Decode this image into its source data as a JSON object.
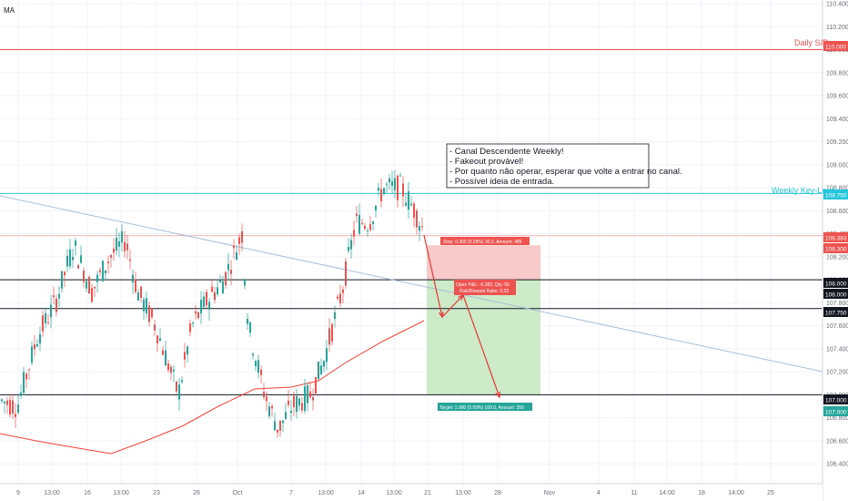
{
  "indicator_label": "MA",
  "annotation_lines": [
    "- Canal Descendente Weekly!",
    "- Fakeout provável!",
    "- Por quanto não operar, esperar que volte a entrar no canal.",
    "- Possível ideia de entrada."
  ],
  "levels": {
    "daily_sr": {
      "label": "Daily S/R",
      "value": "110.000",
      "color": "#ef5350"
    },
    "weekly_key": {
      "label": "Weekly Key-Level",
      "value": "108.750",
      "color": "#26c6da"
    },
    "black_level_1": {
      "value": "108.000"
    },
    "black_level_2": {
      "value": "107.750"
    },
    "black_level_3": {
      "value": "107.000"
    }
  },
  "position": {
    "stop_label": "Stop: 0.300 (0.28%) 30.0, Amount: 485",
    "stop_price": "108.383",
    "stop_price2": "108.300",
    "entry_label_1": "Open P&L: -0.383, Qty: 50",
    "entry_label_2": "Risk/Reward Ratio: 3.33",
    "entry_price": "108.000",
    "target_label": "Target: 1.000 (0.93%) 100.0, Amount: 350",
    "target_price": "107.000"
  },
  "colors": {
    "up": "#26a69a",
    "down": "#ef5350",
    "ma": "#f44336",
    "trendline": "#a6bfd9",
    "risk_zone": "#f8c9c9",
    "reward_zone": "#cdebc9",
    "arrow": "#e53935"
  },
  "chart_data": {
    "type": "candlestick",
    "y_axis": {
      "ticks": [
        "110.400",
        "110.200",
        "110.000",
        "109.800",
        "109.600",
        "109.400",
        "109.200",
        "109.000",
        "108.800",
        "108.600",
        "108.400",
        "108.200",
        "108.000",
        "107.800",
        "107.600",
        "107.400",
        "107.200",
        "107.000",
        "106.800",
        "106.600",
        "106.400"
      ]
    },
    "x_axis": {
      "ticks": [
        "9",
        "13:00",
        "16",
        "13:00",
        "23",
        "26",
        "Oct",
        "7",
        "13:00",
        "14",
        "13:00",
        "21",
        "13:00",
        "28",
        "Nov",
        "4",
        "11",
        "14:00",
        "18",
        "14:00",
        "25"
      ]
    },
    "candles_summary": [
      {
        "x": "9",
        "o": 106.95,
        "h": 107.05,
        "l": 106.85,
        "c": 107.0
      },
      {
        "x": "13:00",
        "o": 107.3,
        "h": 107.8,
        "l": 107.2,
        "c": 107.7
      },
      {
        "x": "16",
        "o": 107.9,
        "h": 108.3,
        "l": 107.7,
        "c": 108.2
      },
      {
        "x": "13:00",
        "o": 108.2,
        "h": 108.4,
        "l": 108.0,
        "c": 108.1
      },
      {
        "x": "23",
        "o": 107.8,
        "h": 107.9,
        "l": 107.0,
        "c": 107.2
      },
      {
        "x": "26",
        "o": 107.6,
        "h": 108.0,
        "l": 107.4,
        "c": 107.9
      },
      {
        "x": "Oct",
        "o": 108.3,
        "h": 108.4,
        "l": 107.5,
        "c": 107.8
      },
      {
        "x": "7",
        "o": 107.1,
        "h": 107.2,
        "l": 106.5,
        "c": 106.8
      },
      {
        "x": "13:00",
        "o": 107.4,
        "h": 107.8,
        "l": 107.2,
        "c": 107.7
      },
      {
        "x": "14",
        "o": 108.4,
        "h": 108.85,
        "l": 108.2,
        "c": 108.7
      },
      {
        "x": "13:00",
        "o": 108.8,
        "h": 108.9,
        "l": 108.55,
        "c": 108.65
      }
    ],
    "title": "",
    "xlabel": "",
    "ylabel": ""
  }
}
